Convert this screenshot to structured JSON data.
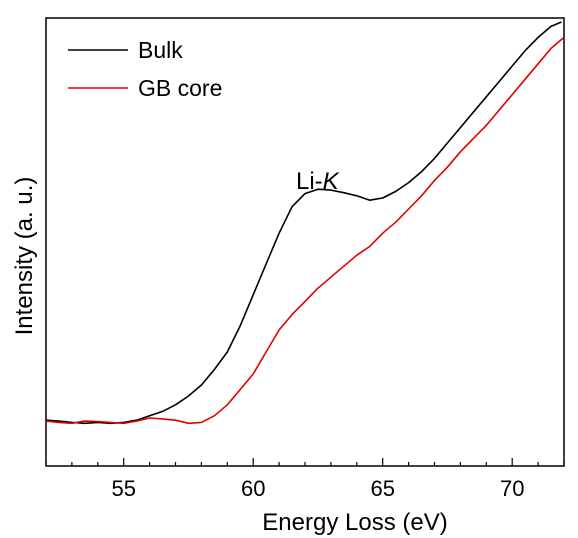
{
  "chart_data": {
    "type": "line",
    "xlabel": "Energy Loss (eV)",
    "ylabel": "Intensity (a. u.)",
    "xlim": [
      52,
      72
    ],
    "ylim": [
      0,
      1
    ],
    "xticks": [
      55,
      60,
      65,
      70
    ],
    "xtick_labels": [
      "55",
      "60",
      "65",
      "70"
    ],
    "y_tick_labels_shown": false,
    "grid": false,
    "legend_position": "top-left",
    "annotation": {
      "prefix": "Li-",
      "italic": "K",
      "x": 63.2,
      "y": 0.64
    },
    "series": [
      {
        "name": "Bulk",
        "color": "#000000",
        "x": [
          52.0,
          52.5,
          53.0,
          53.5,
          54.0,
          54.5,
          55.0,
          55.5,
          56.0,
          56.5,
          57.0,
          57.5,
          58.0,
          58.5,
          59.0,
          59.5,
          60.0,
          60.5,
          61.0,
          61.5,
          62.0,
          62.5,
          63.0,
          63.5,
          64.0,
          64.5,
          65.0,
          65.5,
          66.0,
          66.5,
          67.0,
          67.5,
          68.0,
          68.5,
          69.0,
          69.5,
          70.0,
          70.5,
          71.0,
          71.5,
          71.9
        ],
        "y": [
          0.095,
          0.093,
          0.09,
          0.088,
          0.09,
          0.088,
          0.09,
          0.095,
          0.105,
          0.115,
          0.13,
          0.15,
          0.175,
          0.21,
          0.25,
          0.31,
          0.38,
          0.45,
          0.52,
          0.58,
          0.61,
          0.62,
          0.618,
          0.612,
          0.605,
          0.595,
          0.6,
          0.615,
          0.635,
          0.66,
          0.69,
          0.725,
          0.76,
          0.795,
          0.83,
          0.865,
          0.9,
          0.935,
          0.965,
          0.99,
          1.0
        ]
      },
      {
        "name": "GB core",
        "color": "#e00000",
        "x": [
          52.0,
          52.5,
          53.0,
          53.5,
          54.0,
          54.5,
          55.0,
          55.5,
          56.0,
          56.5,
          57.0,
          57.5,
          58.0,
          58.5,
          59.0,
          59.5,
          60.0,
          60.5,
          61.0,
          61.5,
          62.0,
          62.5,
          63.0,
          63.5,
          64.0,
          64.5,
          65.0,
          65.5,
          66.0,
          66.5,
          67.0,
          67.5,
          68.0,
          68.5,
          69.0,
          69.5,
          70.0,
          70.5,
          71.0,
          71.5,
          72.0
        ],
        "y": [
          0.093,
          0.09,
          0.088,
          0.093,
          0.092,
          0.09,
          0.088,
          0.093,
          0.1,
          0.098,
          0.095,
          0.088,
          0.09,
          0.105,
          0.13,
          0.165,
          0.2,
          0.25,
          0.3,
          0.335,
          0.365,
          0.395,
          0.42,
          0.445,
          0.47,
          0.49,
          0.52,
          0.545,
          0.575,
          0.605,
          0.64,
          0.67,
          0.705,
          0.735,
          0.765,
          0.8,
          0.835,
          0.87,
          0.905,
          0.94,
          0.965
        ]
      }
    ]
  }
}
